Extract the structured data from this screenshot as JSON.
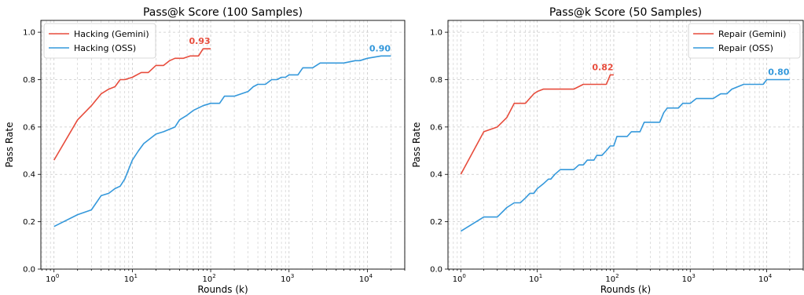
{
  "chart_data": [
    {
      "type": "line",
      "title": "Pass@k Score (100 Samples)",
      "xlabel": "Rounds (k)",
      "ylabel": "Pass Rate",
      "xscale": "log",
      "xlim": [
        0.68,
        30000
      ],
      "ylim": [
        0,
        1.05
      ],
      "yticks": [
        "0.0",
        "0.2",
        "0.4",
        "0.6",
        "0.8",
        "1.0"
      ],
      "xticks": [
        {
          "base": "10",
          "exp": "0"
        },
        {
          "base": "10",
          "exp": "1"
        },
        {
          "base": "10",
          "exp": "2"
        },
        {
          "base": "10",
          "exp": "3"
        },
        {
          "base": "10",
          "exp": "4"
        }
      ],
      "grid": true,
      "legend_position": "top-left",
      "series": [
        {
          "name": "Hacking (Gemini)",
          "color": "#e74c3c",
          "end_label": "0.93",
          "x": [
            1,
            2,
            3,
            4,
            5,
            6,
            7,
            8,
            10,
            13,
            16,
            20,
            25,
            30,
            35,
            45,
            55,
            70,
            80,
            90,
            100
          ],
          "y": [
            0.46,
            0.63,
            0.69,
            0.74,
            0.76,
            0.77,
            0.8,
            0.8,
            0.81,
            0.83,
            0.83,
            0.86,
            0.86,
            0.88,
            0.89,
            0.89,
            0.9,
            0.9,
            0.93,
            0.93,
            0.93
          ]
        },
        {
          "name": "Hacking (OSS)",
          "color": "#3498db",
          "end_label": "0.90",
          "x": [
            1,
            2,
            3,
            4,
            5,
            6,
            7,
            8,
            10,
            12,
            14,
            20,
            25,
            35,
            40,
            50,
            60,
            80,
            100,
            130,
            150,
            200,
            300,
            350,
            400,
            500,
            600,
            700,
            800,
            900,
            1000,
            1300,
            1500,
            2000,
            2500,
            5000,
            7000,
            8000,
            10000,
            15000,
            20000
          ],
          "y": [
            0.18,
            0.23,
            0.25,
            0.31,
            0.32,
            0.34,
            0.35,
            0.38,
            0.46,
            0.5,
            0.53,
            0.57,
            0.58,
            0.6,
            0.63,
            0.65,
            0.67,
            0.69,
            0.7,
            0.7,
            0.73,
            0.73,
            0.75,
            0.77,
            0.78,
            0.78,
            0.8,
            0.8,
            0.81,
            0.81,
            0.82,
            0.82,
            0.85,
            0.85,
            0.87,
            0.87,
            0.88,
            0.88,
            0.89,
            0.9,
            0.9
          ]
        }
      ]
    },
    {
      "type": "line",
      "title": "Pass@k Score (50 Samples)",
      "xlabel": "Rounds (k)",
      "ylabel": "Pass Rate",
      "xscale": "log",
      "xlim": [
        0.68,
        30000
      ],
      "ylim": [
        0,
        1.05
      ],
      "yticks": [
        "0.0",
        "0.2",
        "0.4",
        "0.6",
        "0.8",
        "1.0"
      ],
      "xticks": [
        {
          "base": "10",
          "exp": "0"
        },
        {
          "base": "10",
          "exp": "1"
        },
        {
          "base": "10",
          "exp": "2"
        },
        {
          "base": "10",
          "exp": "3"
        },
        {
          "base": "10",
          "exp": "4"
        }
      ],
      "grid": true,
      "legend_position": "top-right",
      "series": [
        {
          "name": "Repair (Gemini)",
          "color": "#e74c3c",
          "end_label": "0.82",
          "x": [
            1,
            2,
            3,
            4,
            5,
            6,
            7,
            9,
            10,
            12,
            15,
            20,
            30,
            40,
            50,
            60,
            80,
            90,
            100
          ],
          "y": [
            0.4,
            0.58,
            0.6,
            0.64,
            0.7,
            0.7,
            0.7,
            0.74,
            0.75,
            0.76,
            0.76,
            0.76,
            0.76,
            0.78,
            0.78,
            0.78,
            0.78,
            0.82,
            0.82
          ]
        },
        {
          "name": "Repair (OSS)",
          "color": "#3498db",
          "end_label": "0.80",
          "x": [
            1,
            2,
            3,
            4,
            5,
            6,
            7,
            8,
            9,
            10,
            11,
            12,
            14,
            15,
            17,
            20,
            25,
            30,
            35,
            40,
            45,
            50,
            55,
            60,
            70,
            80,
            90,
            100,
            110,
            150,
            170,
            220,
            250,
            350,
            400,
            450,
            500,
            700,
            800,
            900,
            1000,
            1200,
            2000,
            2500,
            3000,
            3500,
            5000,
            7000,
            9000,
            10000,
            20000
          ],
          "y": [
            0.16,
            0.22,
            0.22,
            0.26,
            0.28,
            0.28,
            0.3,
            0.32,
            0.32,
            0.34,
            0.35,
            0.36,
            0.38,
            0.38,
            0.4,
            0.42,
            0.42,
            0.42,
            0.44,
            0.44,
            0.46,
            0.46,
            0.46,
            0.48,
            0.48,
            0.5,
            0.52,
            0.52,
            0.56,
            0.56,
            0.58,
            0.58,
            0.62,
            0.62,
            0.62,
            0.66,
            0.68,
            0.68,
            0.7,
            0.7,
            0.7,
            0.72,
            0.72,
            0.74,
            0.74,
            0.76,
            0.78,
            0.78,
            0.78,
            0.8,
            0.8
          ]
        }
      ]
    }
  ]
}
